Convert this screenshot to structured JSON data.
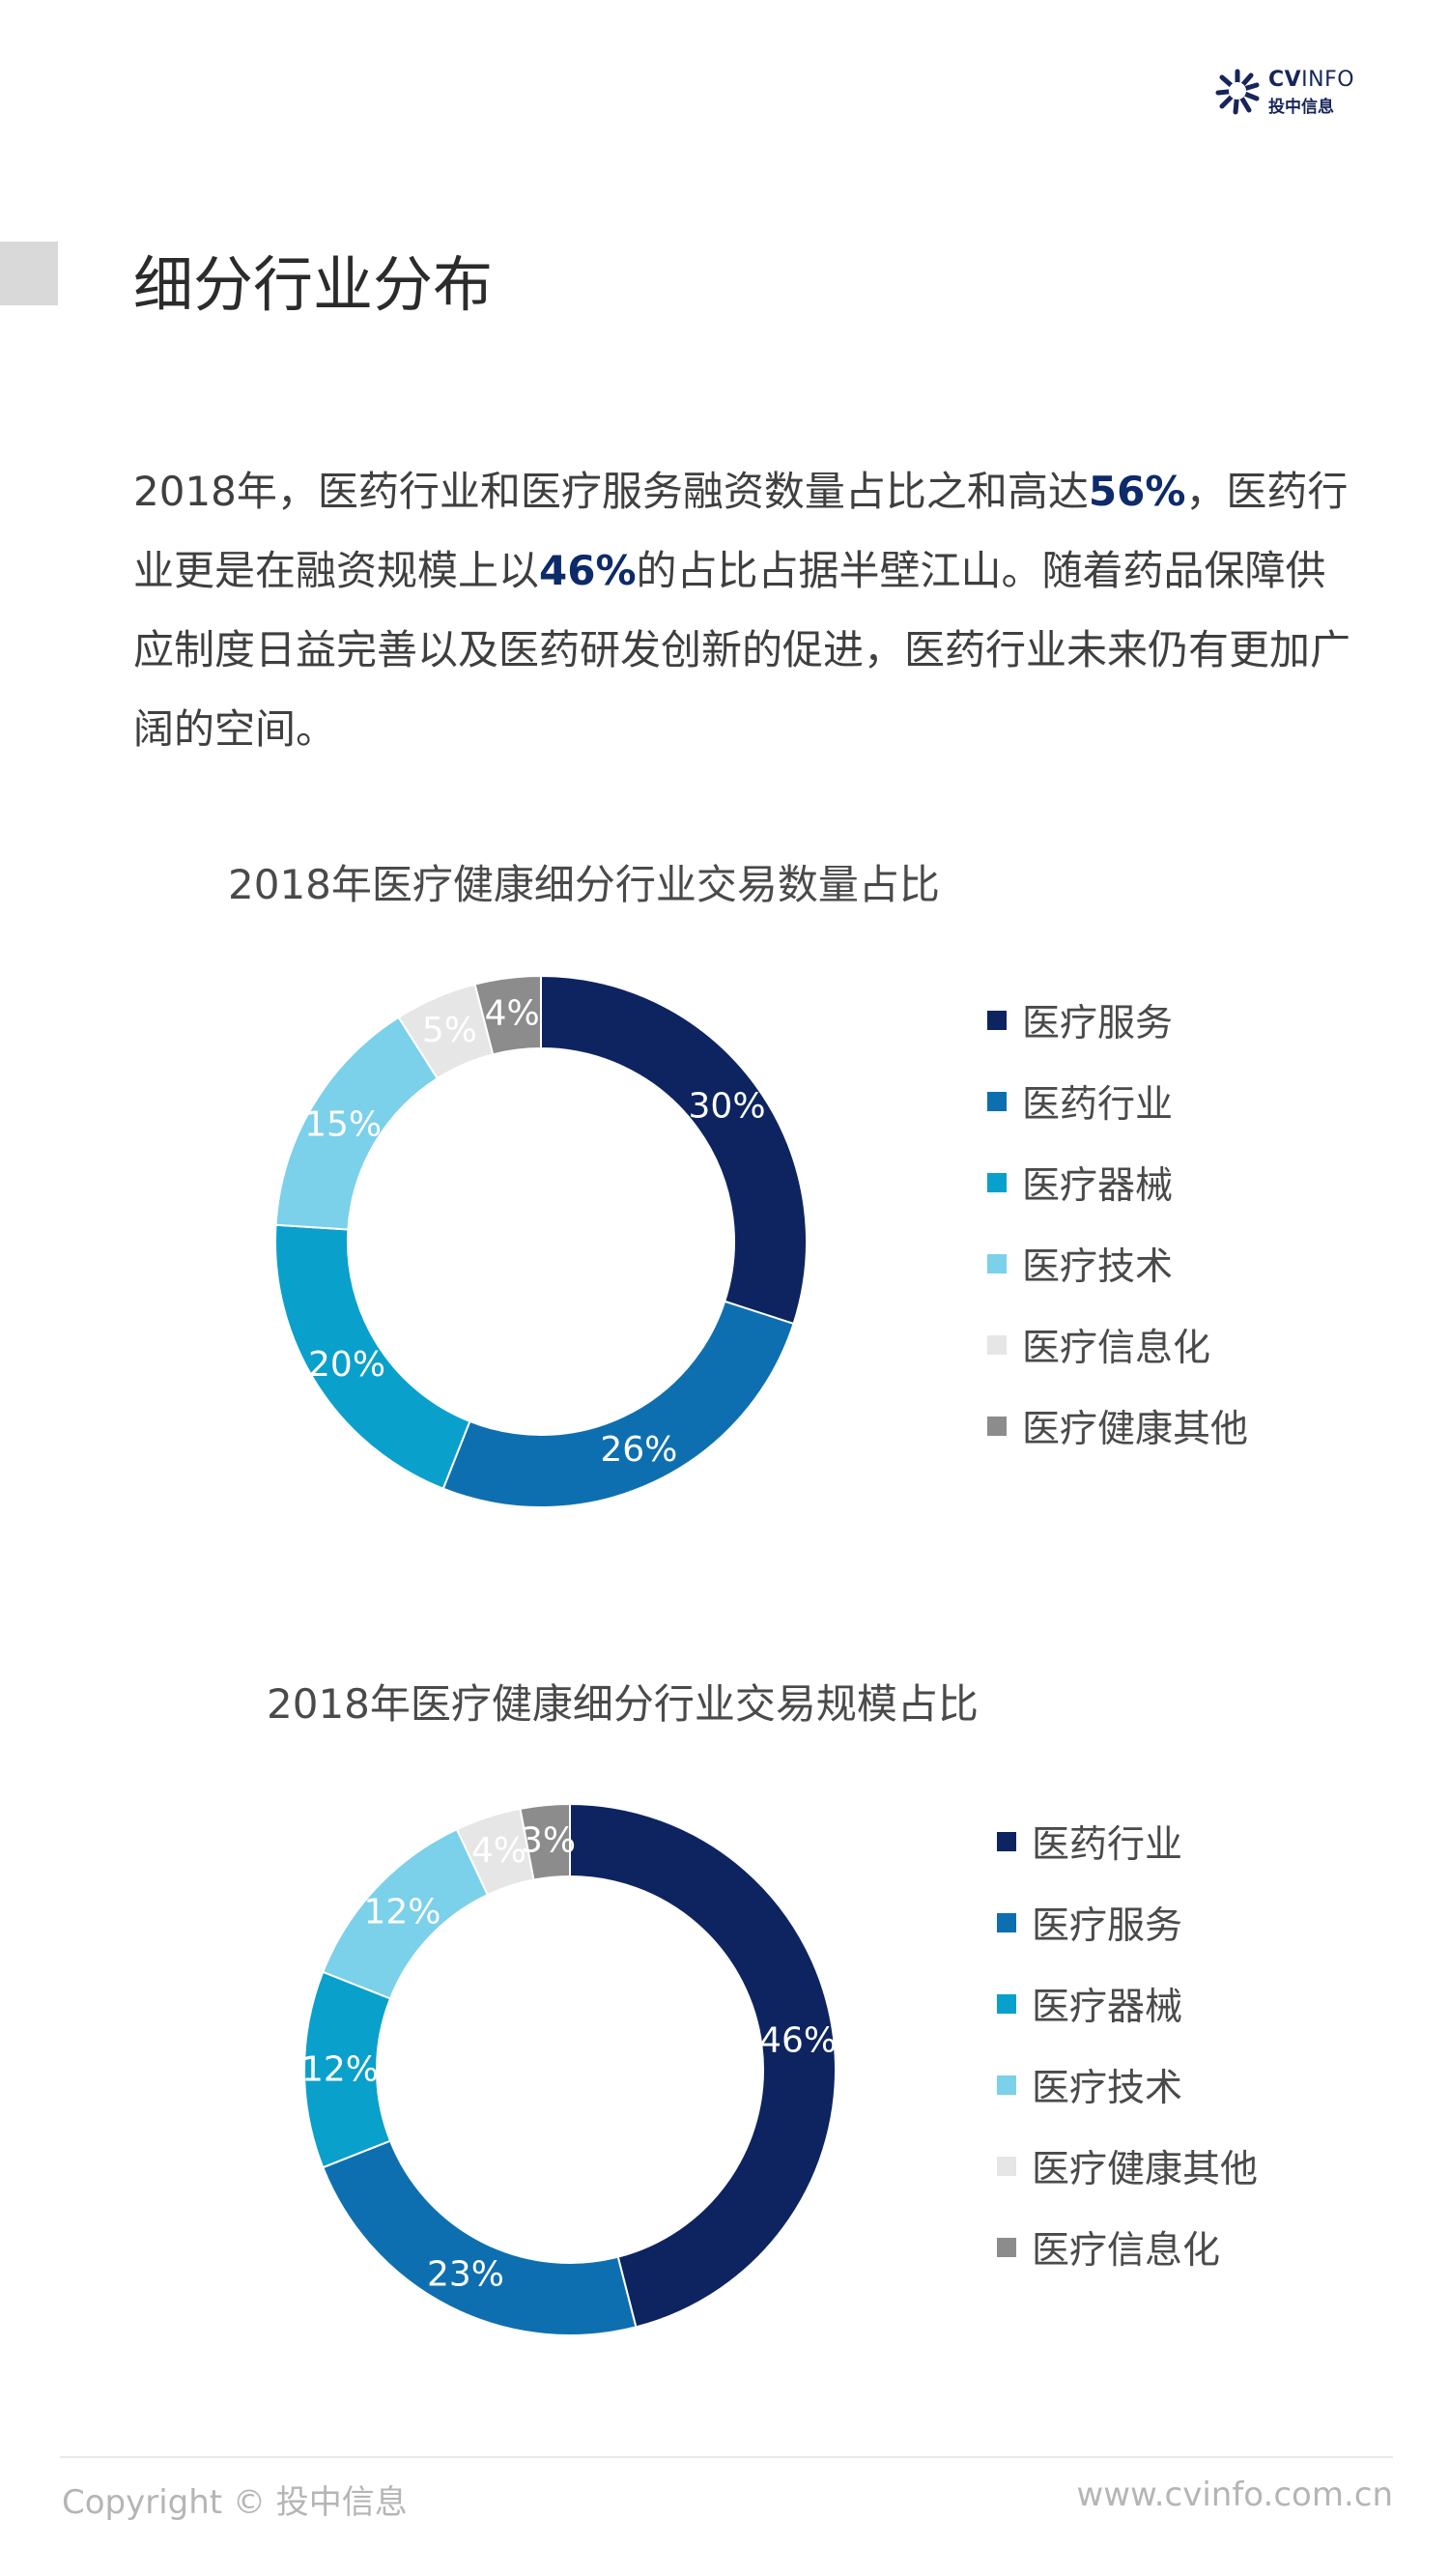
{
  "header": {
    "logo_en_bold": "CV",
    "logo_en_thin": "INFO",
    "logo_cn": "投中信息"
  },
  "page": {
    "title": "细分行业分布",
    "intro": [
      {
        "text": "2018年，医药行业和医疗服务融资数量占比之和高达",
        "highlight": false
      },
      {
        "text": "56%",
        "highlight": true
      },
      {
        "text": "，医药行业更是在融资规模上以",
        "highlight": false
      },
      {
        "text": "46%",
        "highlight": true
      },
      {
        "text": "的占比占据半壁江山。随着药品保障供应制度日益完善以及医药研发创新的促进，医药行业未来仍有更加广阔的空间。",
        "highlight": false
      }
    ]
  },
  "colors": {
    "navy": "#0d2461",
    "blue": "#0e6fb0",
    "cyan": "#0aa0cc",
    "light_blue": "#7bd0ea",
    "very_light": "#e6e6e6",
    "gray": "#8c8c8c",
    "accent_text": "#0d2a6b"
  },
  "chart_data": [
    {
      "type": "pie",
      "title": "2018年医疗健康细分行业交易数量占比",
      "donut": true,
      "legend_position": "right",
      "slices": [
        {
          "name": "医疗服务",
          "value": 30,
          "label": "30%",
          "color": "#0d2461"
        },
        {
          "name": "医药行业",
          "value": 26,
          "label": "26%",
          "color": "#0e6fb0"
        },
        {
          "name": "医疗器械",
          "value": 20,
          "label": "20%",
          "color": "#0aa0cc"
        },
        {
          "name": "医疗技术",
          "value": 15,
          "label": "15%",
          "color": "#7bd0ea"
        },
        {
          "name": "医疗信息化",
          "value": 5,
          "label": "5%",
          "color": "#e6e6e6"
        },
        {
          "name": "医疗健康其他",
          "value": 4,
          "label": "4%",
          "color": "#8c8c8c"
        }
      ]
    },
    {
      "type": "pie",
      "title": "2018年医疗健康细分行业交易规模占比",
      "donut": true,
      "legend_position": "right",
      "slices": [
        {
          "name": "医药行业",
          "value": 46,
          "label": "46%",
          "color": "#0d2461"
        },
        {
          "name": "医疗服务",
          "value": 23,
          "label": "23%",
          "color": "#0e6fb0"
        },
        {
          "name": "医疗器械",
          "value": 12,
          "label": "12%",
          "color": "#0aa0cc"
        },
        {
          "name": "医疗技术",
          "value": 12,
          "label": "12%",
          "color": "#7bd0ea"
        },
        {
          "name": "医疗健康其他",
          "value": 4,
          "label": "4%",
          "color": "#e6e6e6"
        },
        {
          "name": "医疗信息化",
          "value": 3,
          "label": "3%",
          "color": "#8c8c8c"
        }
      ]
    }
  ],
  "footer": {
    "copyright": "Copyright © 投中信息",
    "website": "www.cvinfo.com.cn"
  }
}
